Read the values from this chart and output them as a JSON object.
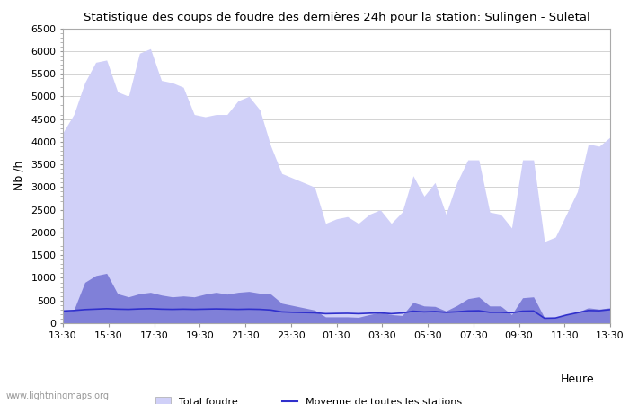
{
  "title": "Statistique des coups de foudre des dernières 24h pour la station: Sulingen - Suletal",
  "xlabel": "Heure",
  "ylabel": "Nb /h",
  "watermark": "www.lightningmaps.org",
  "ylim": [
    0,
    6500
  ],
  "yticks": [
    0,
    500,
    1000,
    1500,
    2000,
    2500,
    3000,
    3500,
    4000,
    4500,
    5000,
    5500,
    6000,
    6500
  ],
  "xtick_labels": [
    "13:30",
    "15:30",
    "17:30",
    "19:30",
    "21:30",
    "23:30",
    "01:30",
    "03:30",
    "05:30",
    "07:30",
    "09:30",
    "11:30",
    "13:30"
  ],
  "color_total": "#d0d0f8",
  "color_station": "#8080d8",
  "color_mean": "#3030cc",
  "bg_color": "#ffffff",
  "grid_color": "#cccccc",
  "total_foudre": [
    4200,
    4600,
    5300,
    5750,
    5800,
    5100,
    5000,
    5950,
    6050,
    5350,
    5300,
    5200,
    4600,
    4550,
    4600,
    4600,
    4900,
    5000,
    4700,
    3900,
    3300,
    3200,
    3100,
    3000,
    2200,
    2300,
    2350,
    2200,
    2400,
    2500,
    2200,
    2450,
    3250,
    2800,
    3100,
    2400,
    3100,
    3600,
    3600,
    2450,
    2400,
    2100,
    3600,
    3600,
    1800,
    1900,
    2400,
    2900,
    3950,
    3900,
    4100
  ],
  "station_foudre": [
    250,
    290,
    900,
    1050,
    1100,
    650,
    580,
    650,
    680,
    620,
    580,
    600,
    580,
    640,
    680,
    640,
    680,
    700,
    660,
    640,
    440,
    390,
    340,
    290,
    140,
    140,
    140,
    130,
    190,
    240,
    190,
    170,
    460,
    380,
    370,
    270,
    390,
    540,
    580,
    380,
    380,
    190,
    560,
    580,
    120,
    120,
    190,
    240,
    340,
    310,
    340
  ],
  "mean_line": [
    270,
    280,
    300,
    310,
    320,
    310,
    305,
    315,
    320,
    310,
    305,
    310,
    305,
    310,
    315,
    310,
    305,
    310,
    305,
    290,
    250,
    240,
    235,
    230,
    210,
    215,
    218,
    210,
    220,
    228,
    210,
    225,
    265,
    250,
    258,
    240,
    252,
    270,
    275,
    240,
    240,
    230,
    265,
    270,
    110,
    115,
    180,
    230,
    280,
    275,
    300
  ]
}
